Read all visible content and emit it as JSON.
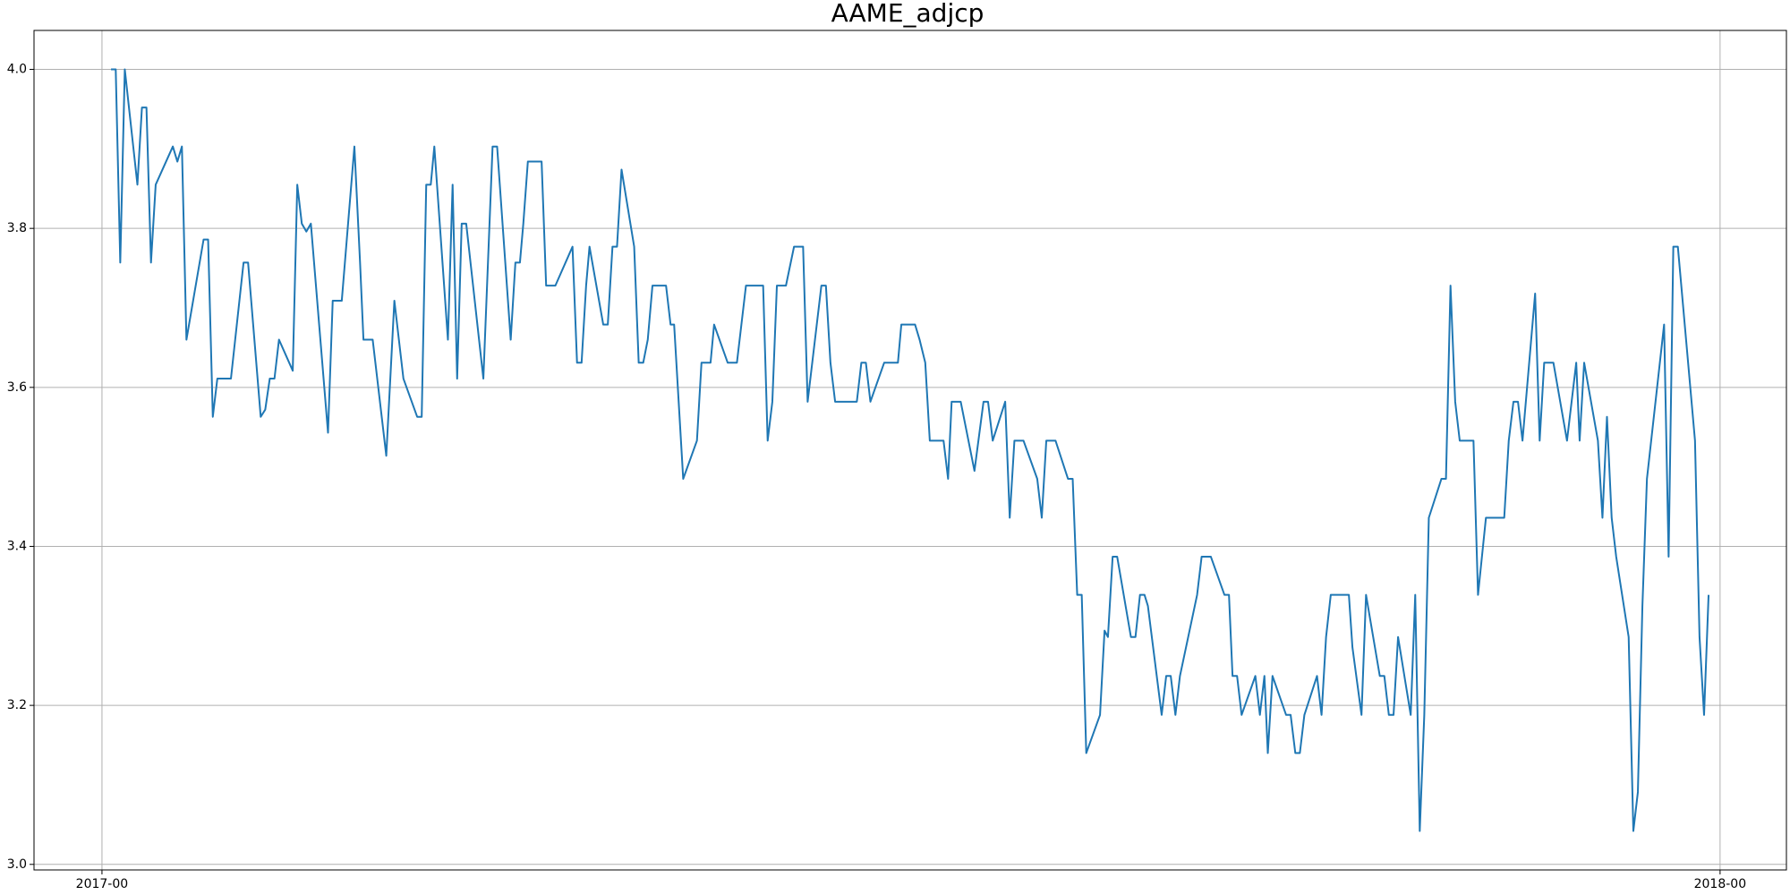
{
  "chart_data": {
    "type": "line",
    "title": "AAME_adjcp",
    "x": [
      2017.0056,
      2017.0085,
      2017.0113,
      2017.0141,
      2017.0219,
      2017.0247,
      2017.0275,
      2017.0303,
      2017.0332,
      2017.0438,
      2017.0466,
      2017.0494,
      2017.0522,
      2017.0628,
      2017.0656,
      2017.0685,
      2017.0713,
      2017.0797,
      2017.0875,
      2017.0903,
      2017.0981,
      2017.1009,
      2017.1037,
      2017.1066,
      2017.1094,
      2017.1179,
      2017.1207,
      2017.1235,
      2017.1263,
      2017.1291,
      2017.1397,
      2017.1426,
      2017.1482,
      2017.156,
      2017.1595,
      2017.1616,
      2017.1673,
      2017.1757,
      2017.1807,
      2017.1863,
      2017.1948,
      2017.1976,
      2017.2004,
      2017.2032,
      2017.2054,
      2017.2138,
      2017.2167,
      2017.2195,
      2017.2223,
      2017.2251,
      2017.2357,
      2017.2414,
      2017.2442,
      2017.2526,
      2017.2555,
      2017.2583,
      2017.2604,
      2017.2632,
      2017.2717,
      2017.2745,
      2017.2802,
      2017.2908,
      2017.2936,
      2017.2964,
      2017.2992,
      2017.3013,
      2017.3098,
      2017.3126,
      2017.3155,
      2017.3183,
      2017.3211,
      2017.3289,
      2017.3317,
      2017.3345,
      2017.3373,
      2017.3402,
      2017.3486,
      2017.3514,
      2017.3536,
      2017.3592,
      2017.3677,
      2017.3705,
      2017.3761,
      2017.3783,
      2017.3867,
      2017.3924,
      2017.398,
      2017.4086,
      2017.4114,
      2017.4143,
      2017.4171,
      2017.4227,
      2017.4277,
      2017.4333,
      2017.4361,
      2017.4446,
      2017.4474,
      2017.4502,
      2017.4531,
      2017.4665,
      2017.4693,
      2017.4721,
      2017.4749,
      2017.4834,
      2017.4919,
      2017.494,
      2017.5025,
      2017.5053,
      2017.5088,
      2017.5116,
      2017.5201,
      2017.5229,
      2017.5251,
      2017.5307,
      2017.5392,
      2017.5448,
      2017.5476,
      2017.5505,
      2017.5582,
      2017.561,
      2017.5639,
      2017.5695,
      2017.578,
      2017.5808,
      2017.5836,
      2017.5893,
      2017.597,
      2017.5999,
      2017.6027,
      2017.6055,
      2017.6083,
      2017.6168,
      2017.6196,
      2017.6217,
      2017.6246,
      2017.6274,
      2017.6359,
      2017.6387,
      2017.6415,
      2017.6443,
      2017.6464,
      2017.6549,
      2017.6577,
      2017.6605,
      2017.6634,
      2017.6662,
      2017.6768,
      2017.6796,
      2017.6853,
      2017.6937,
      2017.6965,
      2017.6987,
      2017.7015,
      2017.7043,
      2017.7128,
      2017.7156,
      2017.7184,
      2017.7205,
      2017.7234,
      2017.7318,
      2017.7346,
      2017.7375,
      2017.7403,
      2017.7431,
      2017.7509,
      2017.7537,
      2017.7565,
      2017.7594,
      2017.7706,
      2017.7728,
      2017.7784,
      2017.7812,
      2017.7897,
      2017.7925,
      2017.7953,
      2017.7982,
      2017.801,
      2017.8088,
      2017.8116,
      2017.8144,
      2017.8172,
      2017.82,
      2017.8278,
      2017.8306,
      2017.8334,
      2017.8363,
      2017.8391,
      2017.8476,
      2017.8504,
      2017.8553,
      2017.8638,
      2017.8666,
      2017.8694,
      2017.8723,
      2017.8751,
      2017.8779,
      2017.8857,
      2017.8885,
      2017.8913,
      2017.897,
      2017.9054,
      2017.9111,
      2017.9132,
      2017.916,
      2017.9245,
      2017.9273,
      2017.9301,
      2017.933,
      2017.9358,
      2017.9435,
      2017.9464,
      2017.9492,
      2017.952,
      2017.9548,
      2017.9654,
      2017.9682,
      2017.9711,
      2017.9739,
      2017.9845,
      2017.9873,
      2017.9901,
      2017.9929
    ],
    "values": [
      4.0,
      4.0,
      3.757,
      4.0,
      3.855,
      3.952,
      3.952,
      3.757,
      3.855,
      3.903,
      3.884,
      3.903,
      3.66,
      3.786,
      3.786,
      3.563,
      3.611,
      3.611,
      3.757,
      3.757,
      3.563,
      3.572,
      3.611,
      3.611,
      3.66,
      3.621,
      3.855,
      3.806,
      3.796,
      3.806,
      3.543,
      3.709,
      3.709,
      3.903,
      3.757,
      3.66,
      3.66,
      3.514,
      3.709,
      3.611,
      3.563,
      3.563,
      3.855,
      3.855,
      3.903,
      3.66,
      3.855,
      3.611,
      3.806,
      3.806,
      3.611,
      3.903,
      3.903,
      3.66,
      3.757,
      3.757,
      3.806,
      3.884,
      3.884,
      3.728,
      3.728,
      3.777,
      3.631,
      3.631,
      3.728,
      3.777,
      3.679,
      3.679,
      3.777,
      3.777,
      3.874,
      3.777,
      3.631,
      3.631,
      3.66,
      3.728,
      3.728,
      3.679,
      3.679,
      3.485,
      3.533,
      3.631,
      3.631,
      3.679,
      3.631,
      3.631,
      3.728,
      3.728,
      3.533,
      3.582,
      3.728,
      3.728,
      3.777,
      3.777,
      3.582,
      3.728,
      3.728,
      3.631,
      3.582,
      3.582,
      3.631,
      3.631,
      3.582,
      3.631,
      3.631,
      3.679,
      3.679,
      3.66,
      3.631,
      3.533,
      3.533,
      3.485,
      3.582,
      3.582,
      3.495,
      3.582,
      3.582,
      3.533,
      3.582,
      3.436,
      3.533,
      3.533,
      3.485,
      3.436,
      3.533,
      3.533,
      3.485,
      3.485,
      3.339,
      3.339,
      3.14,
      3.188,
      3.294,
      3.286,
      3.387,
      3.387,
      3.286,
      3.286,
      3.339,
      3.339,
      3.325,
      3.188,
      3.237,
      3.237,
      3.188,
      3.237,
      3.339,
      3.387,
      3.387,
      3.339,
      3.339,
      3.237,
      3.237,
      3.188,
      3.237,
      3.188,
      3.237,
      3.14,
      3.237,
      3.188,
      3.188,
      3.14,
      3.14,
      3.188,
      3.237,
      3.188,
      3.286,
      3.339,
      3.339,
      3.273,
      3.188,
      3.339,
      3.237,
      3.237,
      3.188,
      3.188,
      3.286,
      3.188,
      3.339,
      3.042,
      3.188,
      3.436,
      3.485,
      3.485,
      3.728,
      3.582,
      3.533,
      3.533,
      3.339,
      3.436,
      3.436,
      3.436,
      3.533,
      3.582,
      3.582,
      3.533,
      3.718,
      3.533,
      3.631,
      3.631,
      3.533,
      3.631,
      3.533,
      3.631,
      3.533,
      3.436,
      3.563,
      3.436,
      3.387,
      3.286,
      3.042,
      3.091,
      3.325,
      3.485,
      3.679,
      3.387,
      3.777,
      3.777,
      3.533,
      3.286,
      3.188,
      3.339
    ],
    "color": "#1f77b4",
    "xlim": [
      2016.958,
      2018.041
    ],
    "xticks": [
      {
        "value": 2017,
        "label": "2017-00"
      },
      {
        "value": 2018,
        "label": "2018-00"
      }
    ],
    "ylim": [
      2.993,
      4.049
    ],
    "yticks": [
      {
        "value": 3.0,
        "label": "3.0"
      },
      3.2,
      3.4,
      3.6,
      3.8,
      {
        "value": 4.0,
        "label": "4.0"
      }
    ],
    "grid": true
  }
}
